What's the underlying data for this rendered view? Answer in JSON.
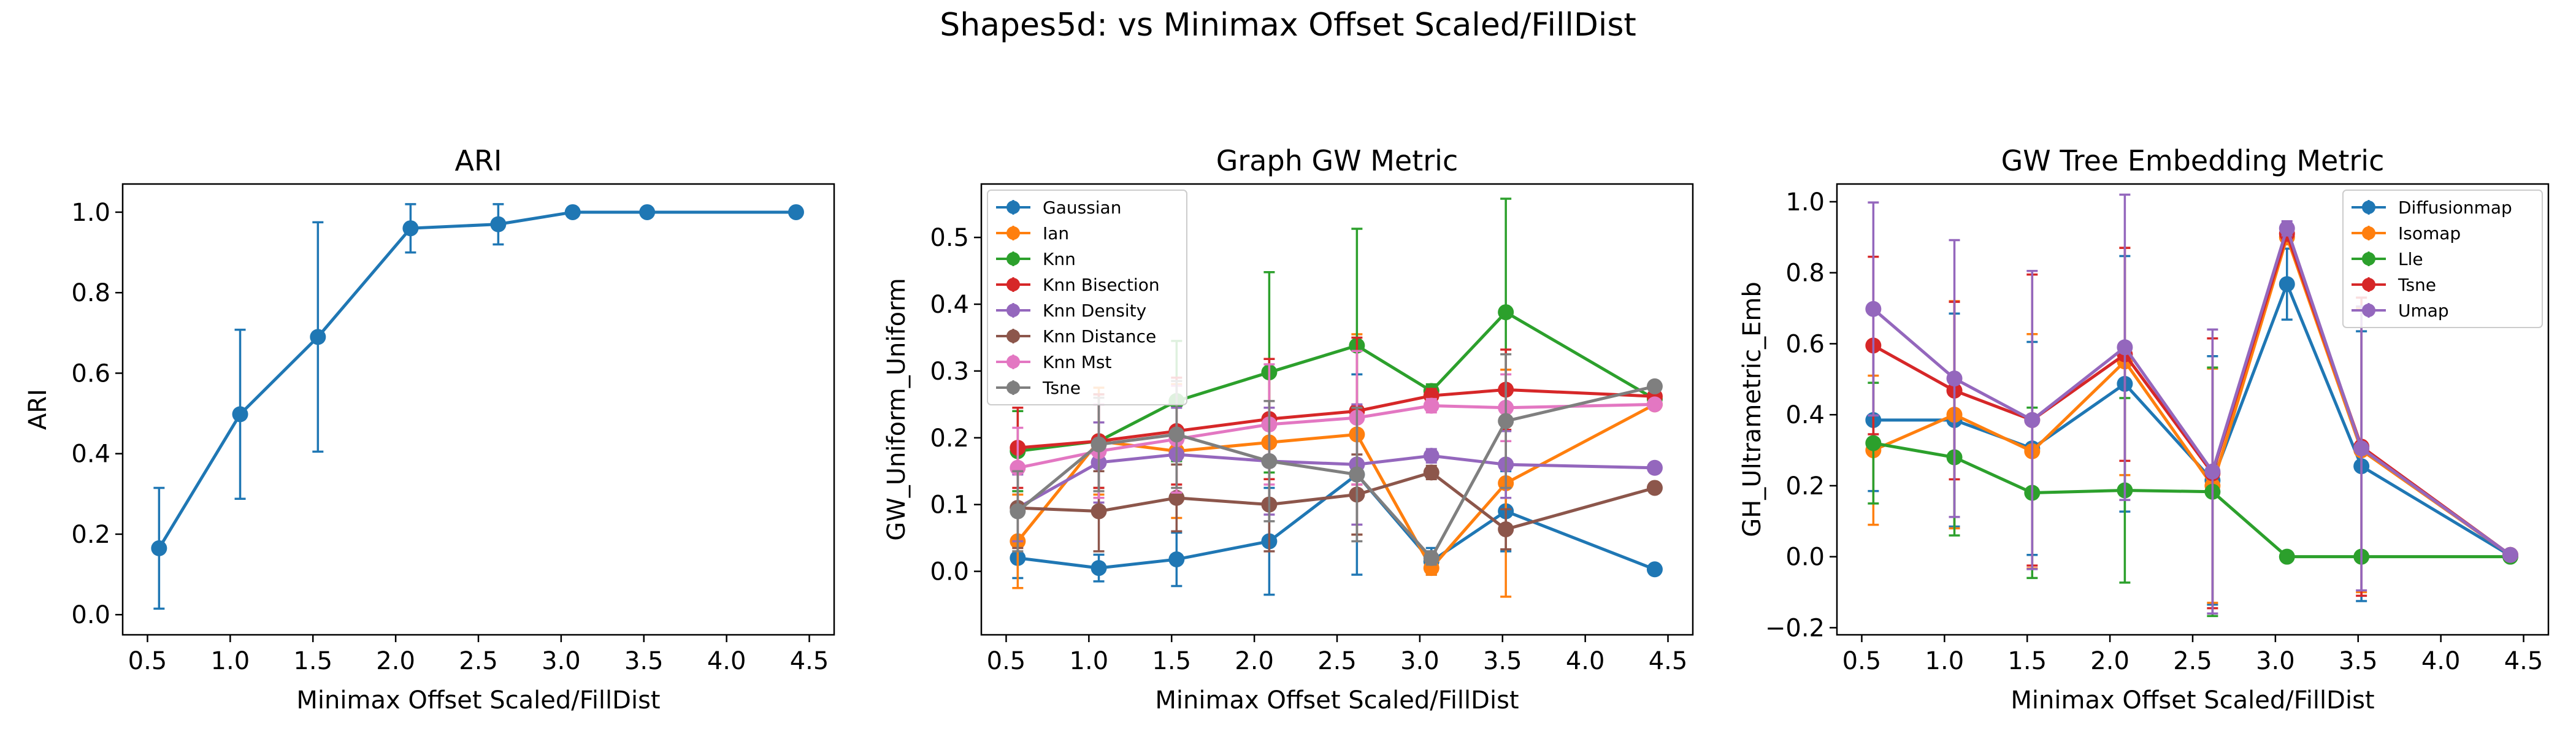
{
  "suptitle": "Shapes5d: vs Minimax Offset Scaled/FillDist",
  "chart_data": [
    {
      "type": "line",
      "title": "ARI",
      "xlabel": "Minimax Offset Scaled/FillDist",
      "ylabel": "ARI",
      "xlim": [
        0.35,
        4.65
      ],
      "ylim": [
        -0.05,
        1.07
      ],
      "xticks": [
        0.5,
        1.0,
        1.5,
        2.0,
        2.5,
        3.0,
        3.5,
        4.0,
        4.5
      ],
      "yticks": [
        0.0,
        0.2,
        0.4,
        0.6,
        0.8,
        1.0
      ],
      "ytick_decimals": 1,
      "grid": false,
      "legend": null,
      "x": [
        0.57,
        1.06,
        1.53,
        2.09,
        2.62,
        3.07,
        3.52,
        4.42
      ],
      "series": [
        {
          "color": "#1f77b4",
          "values": [
            0.165,
            0.498,
            0.69,
            0.96,
            0.97,
            1.0,
            1.0,
            1.0
          ],
          "err": [
            0.15,
            0.21,
            0.285,
            0.06,
            0.05,
            0,
            0,
            0
          ]
        }
      ]
    },
    {
      "type": "line",
      "title": "Graph GW Metric",
      "xlabel": "Minimax Offset Scaled/FillDist",
      "ylabel": "GW_Uniform_Uniform",
      "xlim": [
        0.35,
        4.65
      ],
      "ylim": [
        -0.095,
        0.58
      ],
      "xticks": [
        0.5,
        1.0,
        1.5,
        2.0,
        2.5,
        3.0,
        3.5,
        4.0,
        4.5
      ],
      "yticks": [
        0.0,
        0.1,
        0.2,
        0.3,
        0.4,
        0.5
      ],
      "ytick_decimals": 1,
      "grid": false,
      "legend": "top-left",
      "x": [
        0.57,
        1.06,
        1.53,
        2.09,
        2.62,
        3.07,
        3.52,
        4.42
      ],
      "series": [
        {
          "name": "Gaussian",
          "color": "#1f77b4",
          "values": [
            0.02,
            0.005,
            0.018,
            0.045,
            0.145,
            0.015,
            0.09,
            0.003
          ],
          "err": [
            0.03,
            0.02,
            0.04,
            0.08,
            0.15,
            0.02,
            0.06,
            0
          ]
        },
        {
          "name": "Ian",
          "color": "#ff7f0e",
          "values": [
            0.045,
            0.195,
            0.18,
            0.193,
            0.205,
            0.005,
            0.132,
            0.25
          ],
          "err": [
            0.07,
            0.08,
            0.1,
            0.1,
            0.15,
            0.01,
            0.17,
            0
          ]
        },
        {
          "name": "Knn",
          "color": "#2ca02c",
          "values": [
            0.18,
            0.195,
            0.255,
            0.298,
            0.338,
            0.27,
            0.388,
            0.258
          ],
          "err": [
            0.06,
            0.07,
            0.09,
            0.15,
            0.175,
            0.01,
            0.17,
            0
          ]
        },
        {
          "name": "Knn Bisection",
          "color": "#d62728",
          "values": [
            0.185,
            0.195,
            0.21,
            0.228,
            0.24,
            0.263,
            0.272,
            0.262
          ],
          "err": [
            0.06,
            0.07,
            0.08,
            0.09,
            0.11,
            0.01,
            0.06,
            0
          ]
        },
        {
          "name": "Knn Density",
          "color": "#9467bd",
          "values": [
            0.095,
            0.163,
            0.175,
            0.165,
            0.16,
            0.173,
            0.16,
            0.155
          ],
          "err": [
            0.05,
            0.06,
            0.07,
            0.08,
            0.09,
            0.01,
            0.05,
            0
          ]
        },
        {
          "name": "Knn Distance",
          "color": "#8c564b",
          "values": [
            0.095,
            0.09,
            0.11,
            0.1,
            0.115,
            0.148,
            0.063,
            0.125
          ],
          "err": [
            0.06,
            0.06,
            0.05,
            0.07,
            0.06,
            0.01,
            0.03,
            0
          ]
        },
        {
          "name": "Knn Mst",
          "color": "#e377c2",
          "values": [
            0.155,
            0.18,
            0.198,
            0.22,
            0.23,
            0.248,
            0.245,
            0.25
          ],
          "err": [
            0.06,
            0.07,
            0.08,
            0.09,
            0.1,
            0.01,
            0.05,
            0
          ]
        },
        {
          "name": "Tsne",
          "color": "#7f7f7f",
          "values": [
            0.09,
            0.19,
            0.205,
            0.165,
            0.145,
            0.02,
            0.225,
            0.277
          ],
          "err": [
            0.06,
            0.07,
            0.08,
            0.09,
            0.1,
            0.01,
            0.1,
            0
          ]
        }
      ]
    },
    {
      "type": "line",
      "title": "GW Tree Embedding Metric",
      "xlabel": "Minimax Offset Scaled/FillDist",
      "ylabel": "GH_Ultrametric_Emb",
      "xlim": [
        0.35,
        4.65
      ],
      "ylim": [
        -0.22,
        1.05
      ],
      "xticks": [
        0.5,
        1.0,
        1.5,
        2.0,
        2.5,
        3.0,
        3.5,
        4.0,
        4.5
      ],
      "yticks": [
        -0.2,
        0.0,
        0.2,
        0.4,
        0.6,
        0.8,
        1.0
      ],
      "ytick_decimals": 1,
      "grid": false,
      "legend": "top-right",
      "x": [
        0.57,
        1.06,
        1.53,
        2.09,
        2.62,
        3.07,
        3.52,
        4.42
      ],
      "series": [
        {
          "name": "Diffusionmap",
          "color": "#1f77b4",
          "values": [
            0.385,
            0.385,
            0.305,
            0.487,
            0.215,
            0.768,
            0.255,
            0.003
          ],
          "err": [
            0.2,
            0.3,
            0.3,
            0.36,
            0.35,
            0.1,
            0.38,
            0
          ]
        },
        {
          "name": "Isomap",
          "color": "#ff7f0e",
          "values": [
            0.3,
            0.4,
            0.297,
            0.55,
            0.2,
            0.9,
            0.3,
            0.005
          ],
          "err": [
            0.21,
            0.32,
            0.33,
            0.32,
            0.33,
            0.02,
            0.4,
            0
          ]
        },
        {
          "name": "Lle",
          "color": "#2ca02c",
          "values": [
            0.32,
            0.28,
            0.18,
            0.187,
            0.183,
            0.0,
            0.0,
            0.0
          ],
          "err": [
            0.17,
            0.22,
            0.24,
            0.26,
            0.35,
            0,
            0,
            0
          ]
        },
        {
          "name": "Tsne",
          "color": "#d62728",
          "values": [
            0.595,
            0.468,
            0.385,
            0.57,
            0.235,
            0.91,
            0.31,
            0.005
          ],
          "err": [
            0.25,
            0.25,
            0.41,
            0.3,
            0.38,
            0.02,
            0.42,
            0
          ]
        },
        {
          "name": "Umap",
          "color": "#9467bd",
          "values": [
            0.698,
            0.502,
            0.385,
            0.59,
            0.24,
            0.925,
            0.305,
            0.005
          ],
          "err": [
            0.3,
            0.39,
            0.42,
            0.43,
            0.4,
            0.02,
            0.4,
            0
          ]
        }
      ]
    }
  ]
}
